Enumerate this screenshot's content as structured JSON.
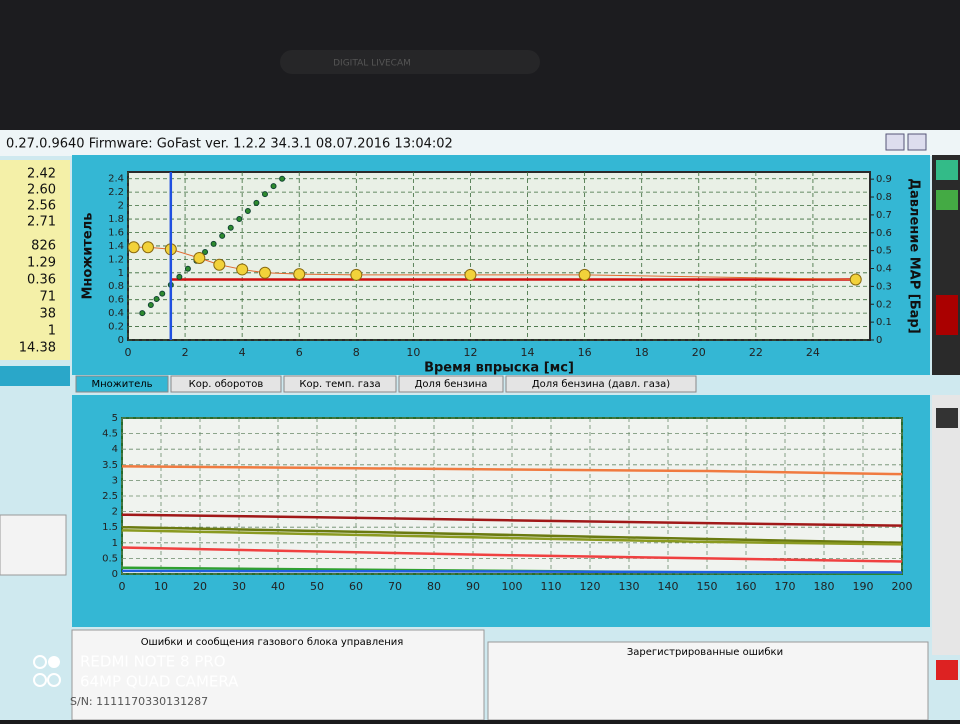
{
  "bezel_label": "DIGITAL LIVECAM",
  "window": {
    "title": "0.27.0.9640 Firmware: GoFast  ver. 1.2.2  34.3.1    08.07.2016 13:04:02"
  },
  "left_values": [
    "2.42",
    "2.60",
    "2.56",
    "2.71",
    "826",
    "1.29",
    "0.36",
    "71",
    "38",
    "1",
    "14.38"
  ],
  "tabs": [
    "Множитель",
    "Кор. оборотов",
    "Кор. темп. газа",
    "Доля бензина",
    "Доля бензина (давл. газа)"
  ],
  "panels": {
    "messages": "Ошибки и сообщения газового блока управления",
    "errors": "Зарегистрированные ошибки",
    "serial": "S/N: 1111170330131287"
  },
  "watermark": [
    "REDMI NOTE 8 PRO",
    "64MP QUAD CAMERA"
  ],
  "chart_data": [
    {
      "type": "line",
      "xlabel": "Время впрыска [мс]",
      "ylabel": "Множитель",
      "y2label": "Давление MAP [Бар]",
      "xlim": [
        0,
        26
      ],
      "xticks": [
        0,
        2,
        4,
        6,
        8,
        10,
        12,
        14,
        16,
        18,
        20,
        22,
        24
      ],
      "ylim": [
        0,
        2.5
      ],
      "yticks": [
        0,
        0.2,
        0.4,
        0.6,
        0.8,
        1,
        1.2,
        1.4,
        1.6,
        1.8,
        2,
        2.2,
        2.4
      ],
      "y2lim": [
        0,
        0.94
      ],
      "y2ticks": [
        0,
        0.1,
        0.2,
        0.3,
        0.4,
        0.5,
        0.6,
        0.7,
        0.8,
        0.9
      ],
      "grid": true,
      "series": [
        {
          "color": "#d01010",
          "x": [
            1.5,
            25.5
          ],
          "values": [
            0.9,
            0.9
          ],
          "marker": false
        },
        {
          "color": "#2e8b2e",
          "x": [
            0.5,
            0.8,
            1.0,
            1.2,
            1.5,
            1.8,
            2.1,
            2.4,
            2.7,
            3.0,
            3.3,
            3.6,
            3.9,
            4.2,
            4.5,
            4.8,
            5.1,
            5.4
          ],
          "values": [
            0.4,
            0.52,
            0.61,
            0.69,
            0.82,
            0.94,
            1.06,
            1.18,
            1.31,
            1.43,
            1.55,
            1.67,
            1.8,
            1.92,
            2.04,
            2.17,
            2.29,
            2.4
          ],
          "marker": true,
          "line": false
        },
        {
          "color": "#f2d23a",
          "x": [
            0.2,
            0.7,
            1.5,
            2.5,
            3.2,
            4,
            4.8,
            6,
            8,
            12,
            16,
            25.5
          ],
          "values": [
            1.38,
            1.38,
            1.35,
            1.22,
            1.12,
            1.05,
            1.0,
            0.98,
            0.97,
            0.97,
            0.97,
            0.9
          ],
          "marker": true,
          "line": true
        },
        {
          "color": "#2050e0",
          "x": [
            1.5,
            1.5
          ],
          "values": [
            0,
            2.5
          ],
          "marker": false
        }
      ]
    },
    {
      "type": "line",
      "xlim": [
        0,
        200
      ],
      "xticks": [
        0,
        10,
        20,
        30,
        40,
        50,
        60,
        70,
        80,
        90,
        100,
        110,
        120,
        130,
        140,
        150,
        160,
        170,
        180,
        190,
        200
      ],
      "ylim": [
        0,
        5
      ],
      "yticks": [
        0,
        0.5,
        1,
        1.5,
        2,
        2.5,
        3,
        3.5,
        4,
        4.5,
        5
      ],
      "grid": true,
      "x": [
        0,
        50,
        100,
        150,
        200
      ],
      "series": [
        {
          "color": "#f07a40",
          "values": [
            3.45,
            3.4,
            3.35,
            3.3,
            3.2
          ]
        },
        {
          "color": "#a01818",
          "values": [
            1.9,
            1.82,
            1.72,
            1.63,
            1.55
          ]
        },
        {
          "color": "#6a7a10",
          "values": [
            1.5,
            1.38,
            1.25,
            1.12,
            1.0
          ]
        },
        {
          "color": "#8a9a20",
          "values": [
            1.4,
            1.28,
            1.15,
            1.03,
            0.95
          ]
        },
        {
          "color": "#f04040",
          "values": [
            0.85,
            0.72,
            0.6,
            0.5,
            0.4
          ]
        },
        {
          "color": "#30a030",
          "values": [
            0.2,
            0.15,
            0.1,
            0.05,
            0.02
          ]
        },
        {
          "color": "#2060e0",
          "values": [
            0.1,
            0.09,
            0.08,
            0.06,
            0.05
          ]
        }
      ]
    }
  ]
}
